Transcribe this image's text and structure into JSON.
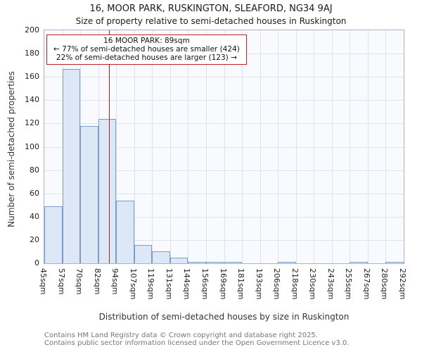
{
  "title": "16, MOOR PARK, RUSKINGTON, SLEAFORD, NG34 9AJ",
  "subtitle": "Size of property relative to semi-detached houses in Ruskington",
  "chart_data": {
    "type": "bar",
    "title": "16, MOOR PARK, RUSKINGTON, SLEAFORD, NG34 9AJ",
    "subtitle": "Size of property relative to semi-detached houses in Ruskington",
    "xlabel": "Distribution of semi-detached houses by size in Ruskington",
    "ylabel": "Number of semi-detached properties",
    "bin_edge_labels": [
      "45sqm",
      "57sqm",
      "70sqm",
      "82sqm",
      "94sqm",
      "107sqm",
      "119sqm",
      "131sqm",
      "144sqm",
      "156sqm",
      "169sqm",
      "181sqm",
      "193sqm",
      "206sqm",
      "218sqm",
      "230sqm",
      "243sqm",
      "255sqm",
      "267sqm",
      "280sqm",
      "292sqm"
    ],
    "values": [
      49,
      167,
      118,
      124,
      54,
      16,
      10,
      5,
      1,
      1,
      1,
      0,
      0,
      1,
      0,
      0,
      0,
      1,
      0,
      1
    ],
    "ylim": [
      0,
      200
    ],
    "ytick_step": 20,
    "grid": true,
    "legend": "none",
    "marker": {
      "value_sqm": 89,
      "color": "#aa2222"
    },
    "colors": {
      "bar_fill": "#dde8f6",
      "bar_border": "#7a9cc8",
      "grid": "#dce3ef",
      "plot_bg": "#f8fafd",
      "marker": "#aa2222",
      "annotation_border": "#bb2222"
    }
  },
  "annotation": {
    "line1": "16 MOOR PARK: 89sqm",
    "line2": "← 77% of semi-detached houses are smaller (424)",
    "line3": "22% of semi-detached houses are larger (123) →"
  },
  "footer": {
    "line1": "Contains HM Land Registry data © Crown copyright and database right 2025.",
    "line2": "Contains public sector information licensed under the Open Government Licence v3.0."
  }
}
